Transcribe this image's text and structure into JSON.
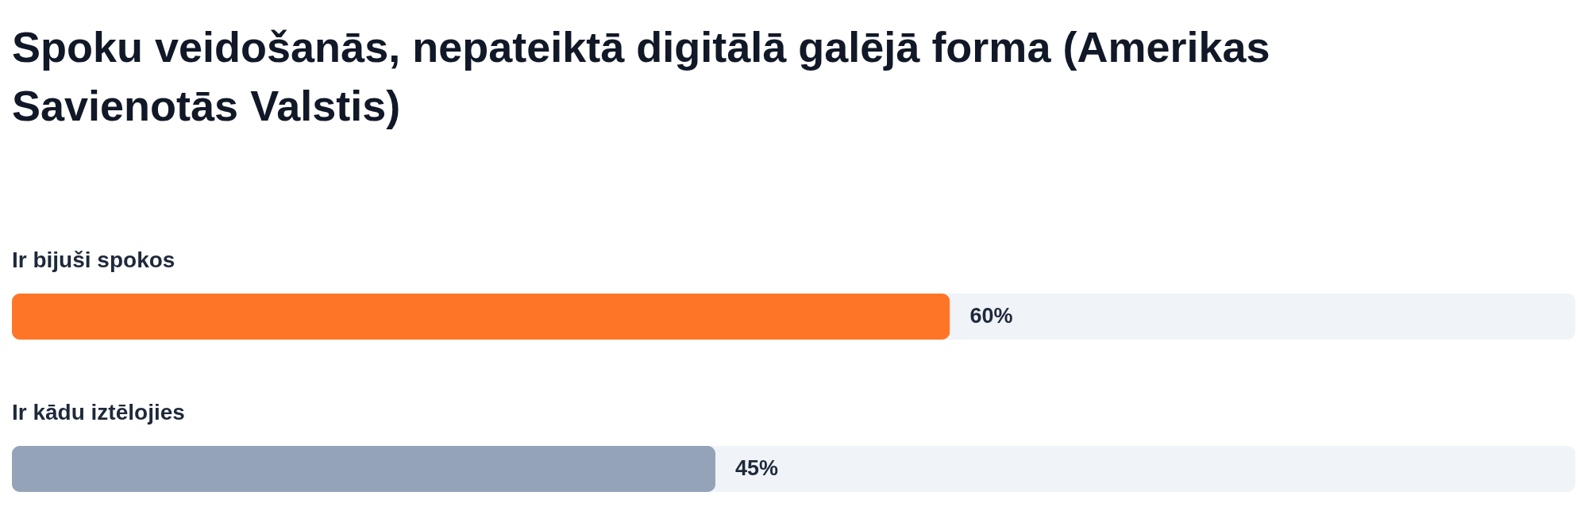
{
  "chart_data": {
    "type": "bar",
    "orientation": "horizontal",
    "title": "Spoku veidošanās, nepateiktā digitālā galējā forma (Amerikas Savienotās Valstis)",
    "categories": [
      "Ir bijuši spokos",
      "Ir kādu iztēlojies"
    ],
    "values": [
      60,
      45
    ],
    "colors": [
      "#ff7527",
      "#94a3b8"
    ],
    "value_labels": [
      "60%",
      "45%"
    ],
    "xlim": [
      0,
      100
    ]
  }
}
